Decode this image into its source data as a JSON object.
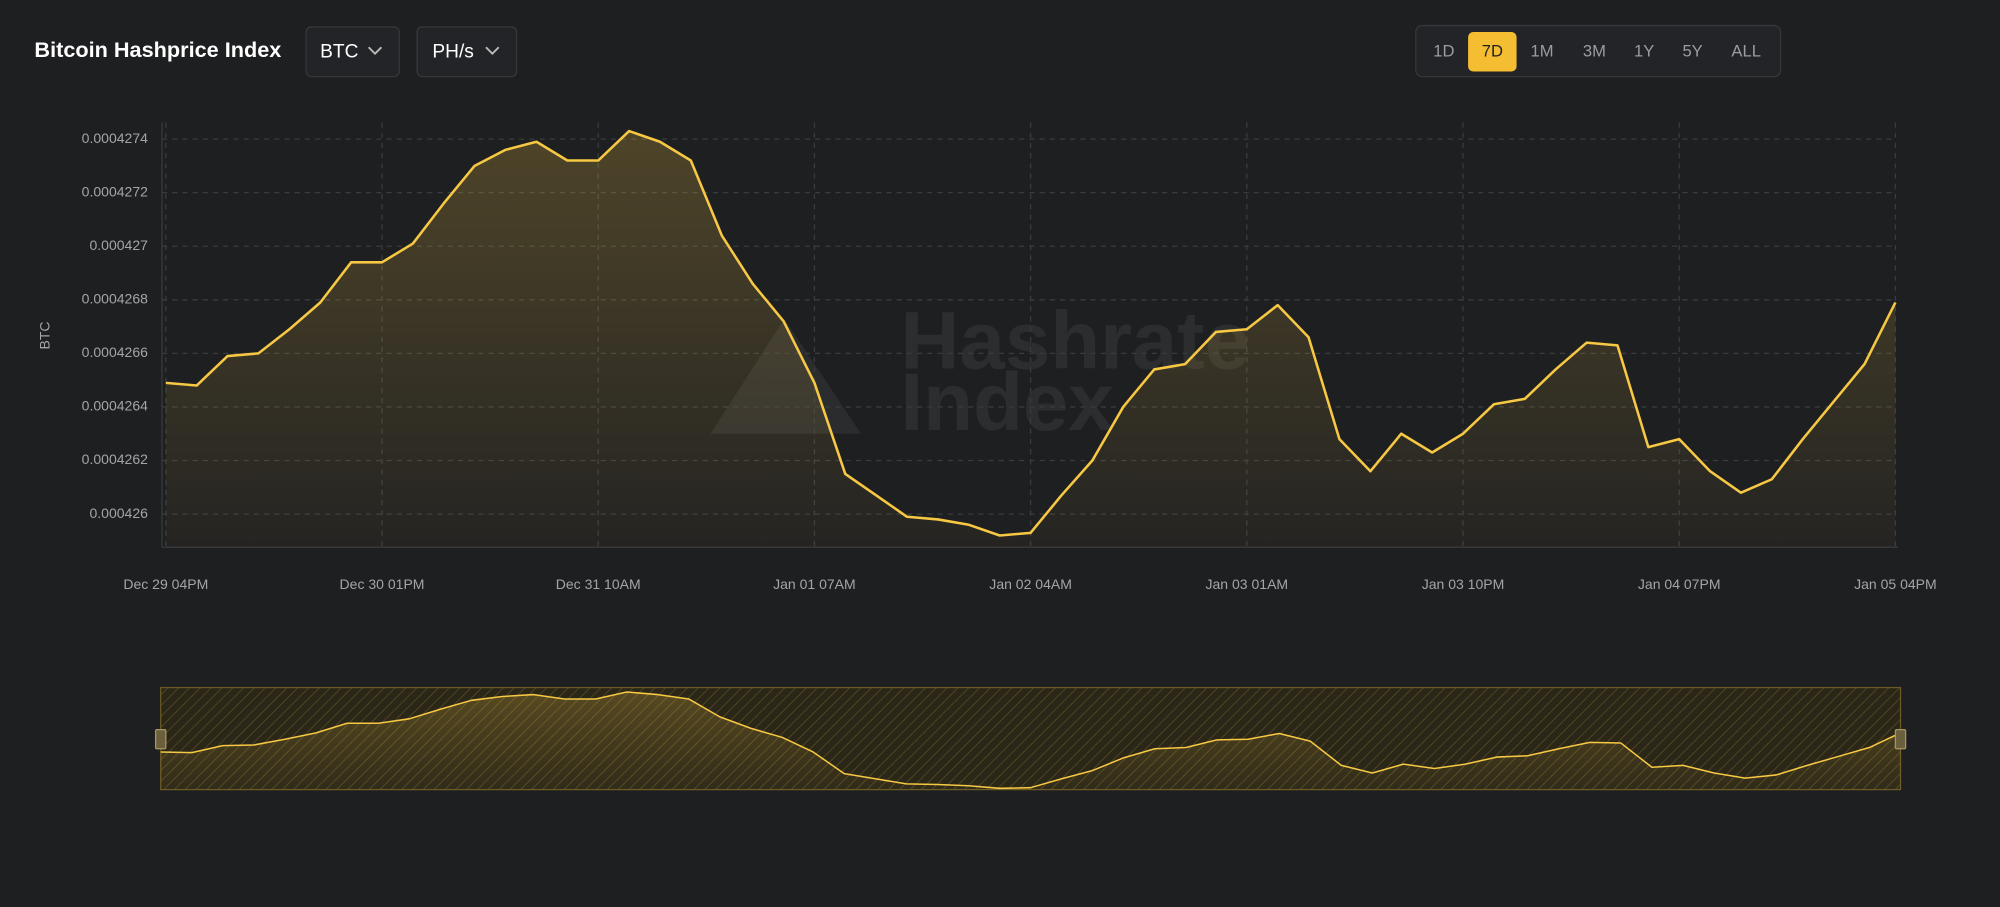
{
  "header": {
    "title": "Bitcoin Hashprice Index",
    "currency": "BTC",
    "unit": "PH/s",
    "ranges": [
      "1D",
      "7D",
      "1M",
      "3M",
      "1Y",
      "5Y",
      "ALL"
    ],
    "active_range": "7D"
  },
  "chart_data": {
    "type": "line",
    "ylabel": "BTC",
    "watermark": [
      "Hashrate",
      "Index"
    ],
    "color": "#f7c843",
    "grid": true,
    "categories": [
      "Dec 29 04PM",
      null,
      null,
      null,
      null,
      null,
      null,
      "Dec 30 01PM",
      null,
      null,
      null,
      null,
      null,
      null,
      "Dec 31 10AM",
      null,
      null,
      null,
      null,
      null,
      null,
      "Jan 01 07AM",
      null,
      null,
      null,
      null,
      null,
      null,
      "Jan 02 04AM",
      null,
      null,
      null,
      null,
      null,
      null,
      "Jan 03 01AM",
      null,
      null,
      null,
      null,
      null,
      null,
      "Jan 03 10PM",
      null,
      null,
      null,
      null,
      null,
      null,
      "Jan 04 07PM",
      null,
      null,
      null,
      null,
      null,
      null,
      "Jan 05 04PM"
    ],
    "values": [
      0.00042649,
      0.00042648,
      0.00042659,
      0.0004266,
      0.00042669,
      0.00042679,
      0.00042694,
      0.00042694,
      0.00042701,
      0.00042716,
      0.0004273,
      0.00042736,
      0.00042739,
      0.00042732,
      0.00042732,
      0.00042743,
      0.00042739,
      0.00042732,
      0.00042704,
      0.00042686,
      0.00042672,
      0.00042649,
      0.00042615,
      0.00042607,
      0.00042599,
      0.00042598,
      0.00042596,
      0.00042592,
      0.00042593,
      0.00042607,
      0.0004262,
      0.0004264,
      0.00042654,
      0.00042656,
      0.00042668,
      0.00042669,
      0.00042678,
      0.00042666,
      0.00042628,
      0.00042616,
      0.0004263,
      0.00042623,
      0.0004263,
      0.00042641,
      0.00042643,
      0.00042654,
      0.00042664,
      0.00042663,
      0.00042625,
      0.00042628,
      0.00042616,
      0.00042608,
      0.00042613,
      0.00042628,
      0.00042642,
      0.00042656,
      0.00042679
    ],
    "ylim": [
      0.0004259,
      0.0004275
    ],
    "yticks": [
      0.000426,
      0.0004262,
      0.0004264,
      0.0004266,
      0.0004268,
      0.000427,
      0.0004272,
      0.0004274
    ]
  }
}
